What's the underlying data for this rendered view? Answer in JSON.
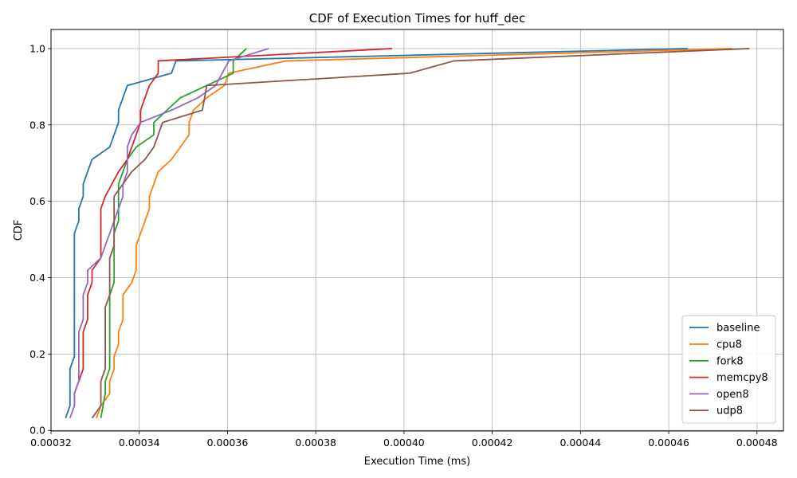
{
  "chart_data": {
    "type": "line",
    "title": "CDF of Execution Times for huff_dec",
    "xlabel": "Execution Time (ms)",
    "ylabel": "CDF",
    "xlim": [
      0.00032,
      0.000486
    ],
    "ylim": [
      -0.0016,
      1.05
    ],
    "xticks": [
      0.00032,
      0.00034,
      0.00036,
      0.00038,
      0.0004,
      0.00042,
      0.00044,
      0.00046,
      0.00048
    ],
    "xtick_labels": [
      "0.00032",
      "0.00034",
      "0.00036",
      "0.00038",
      "0.00040",
      "0.00042",
      "0.00044",
      "0.00046",
      "0.00048"
    ],
    "yticks": [
      0.0,
      0.2,
      0.4,
      0.6,
      0.8,
      1.0
    ],
    "ytick_labels": [
      "0.0",
      "0.2",
      "0.4",
      "0.6",
      "0.8",
      "1.0"
    ],
    "grid": true,
    "legend_position": "lower-right",
    "series": [
      {
        "name": "baseline",
        "color": "#1f77b4",
        "points": [
          [
            0.0003233,
            0.0323
          ],
          [
            0.0003243,
            0.0645
          ],
          [
            0.0003243,
            0.0968
          ],
          [
            0.0003243,
            0.129
          ],
          [
            0.0003243,
            0.1613
          ],
          [
            0.0003253,
            0.1935
          ],
          [
            0.0003253,
            0.2258
          ],
          [
            0.0003253,
            0.2581
          ],
          [
            0.0003253,
            0.2903
          ],
          [
            0.0003253,
            0.3226
          ],
          [
            0.0003253,
            0.3548
          ],
          [
            0.0003253,
            0.3871
          ],
          [
            0.0003253,
            0.4194
          ],
          [
            0.0003253,
            0.4516
          ],
          [
            0.0003253,
            0.4839
          ],
          [
            0.0003253,
            0.5161
          ],
          [
            0.0003263,
            0.5484
          ],
          [
            0.0003263,
            0.5806
          ],
          [
            0.0003273,
            0.6129
          ],
          [
            0.0003273,
            0.6452
          ],
          [
            0.0003293,
            0.7097
          ],
          [
            0.0003333,
            0.7419
          ],
          [
            0.0003353,
            0.8065
          ],
          [
            0.0003353,
            0.8387
          ],
          [
            0.0003373,
            0.9032
          ],
          [
            0.0003473,
            0.9355
          ],
          [
            0.0003483,
            0.9677
          ],
          [
            0.0004643,
            1.0
          ]
        ]
      },
      {
        "name": "cpu8",
        "color": "#ff7f0e",
        "points": [
          [
            0.0003303,
            0.0323
          ],
          [
            0.0003313,
            0.0645
          ],
          [
            0.0003333,
            0.0968
          ],
          [
            0.0003333,
            0.129
          ],
          [
            0.0003343,
            0.1613
          ],
          [
            0.0003343,
            0.1935
          ],
          [
            0.0003353,
            0.2258
          ],
          [
            0.0003353,
            0.2581
          ],
          [
            0.0003363,
            0.2903
          ],
          [
            0.0003363,
            0.3226
          ],
          [
            0.0003363,
            0.3548
          ],
          [
            0.0003383,
            0.3871
          ],
          [
            0.0003393,
            0.4194
          ],
          [
            0.0003393,
            0.4516
          ],
          [
            0.0003393,
            0.4839
          ],
          [
            0.0003403,
            0.5161
          ],
          [
            0.0003413,
            0.5484
          ],
          [
            0.0003423,
            0.5806
          ],
          [
            0.0003423,
            0.6129
          ],
          [
            0.0003433,
            0.6452
          ],
          [
            0.0003443,
            0.6774
          ],
          [
            0.0003473,
            0.7097
          ],
          [
            0.0003493,
            0.7419
          ],
          [
            0.0003513,
            0.7742
          ],
          [
            0.0003513,
            0.8065
          ],
          [
            0.0003523,
            0.8387
          ],
          [
            0.0003553,
            0.871
          ],
          [
            0.0003593,
            0.9032
          ],
          [
            0.0003603,
            0.9355
          ],
          [
            0.0003733,
            0.9677
          ],
          [
            0.0004743,
            1.0
          ]
        ]
      },
      {
        "name": "fork8",
        "color": "#2ca02c",
        "points": [
          [
            0.0003313,
            0.0323
          ],
          [
            0.0003323,
            0.0968
          ],
          [
            0.0003323,
            0.129
          ],
          [
            0.0003333,
            0.1613
          ],
          [
            0.0003333,
            0.1935
          ],
          [
            0.0003333,
            0.2258
          ],
          [
            0.0003333,
            0.2581
          ],
          [
            0.0003333,
            0.2903
          ],
          [
            0.0003333,
            0.3226
          ],
          [
            0.0003333,
            0.3548
          ],
          [
            0.0003343,
            0.3871
          ],
          [
            0.0003343,
            0.4194
          ],
          [
            0.0003343,
            0.4516
          ],
          [
            0.0003343,
            0.4839
          ],
          [
            0.0003343,
            0.5161
          ],
          [
            0.0003353,
            0.5484
          ],
          [
            0.0003353,
            0.5806
          ],
          [
            0.0003353,
            0.6129
          ],
          [
            0.0003353,
            0.6452
          ],
          [
            0.0003363,
            0.6774
          ],
          [
            0.0003373,
            0.7097
          ],
          [
            0.0003393,
            0.7419
          ],
          [
            0.0003433,
            0.7742
          ],
          [
            0.0003433,
            0.8065
          ],
          [
            0.0003463,
            0.8387
          ],
          [
            0.0003493,
            0.871
          ],
          [
            0.0003553,
            0.9032
          ],
          [
            0.0003613,
            0.9355
          ],
          [
            0.0003613,
            0.9677
          ],
          [
            0.0003643,
            1.0
          ]
        ]
      },
      {
        "name": "memcpy8",
        "color": "#d62728",
        "points": [
          [
            0.0003253,
            0.0645
          ],
          [
            0.0003253,
            0.0968
          ],
          [
            0.0003263,
            0.129
          ],
          [
            0.0003273,
            0.1613
          ],
          [
            0.0003273,
            0.1935
          ],
          [
            0.0003273,
            0.2258
          ],
          [
            0.0003273,
            0.2581
          ],
          [
            0.0003283,
            0.2903
          ],
          [
            0.0003283,
            0.3226
          ],
          [
            0.0003283,
            0.3548
          ],
          [
            0.0003293,
            0.3871
          ],
          [
            0.0003293,
            0.4194
          ],
          [
            0.0003313,
            0.4516
          ],
          [
            0.0003313,
            0.4839
          ],
          [
            0.0003313,
            0.5161
          ],
          [
            0.0003313,
            0.5484
          ],
          [
            0.0003313,
            0.5806
          ],
          [
            0.0003323,
            0.6129
          ],
          [
            0.0003353,
            0.6774
          ],
          [
            0.0003373,
            0.7097
          ],
          [
            0.0003383,
            0.7419
          ],
          [
            0.0003393,
            0.7742
          ],
          [
            0.0003403,
            0.8065
          ],
          [
            0.0003403,
            0.8387
          ],
          [
            0.0003423,
            0.9032
          ],
          [
            0.0003443,
            0.9355
          ],
          [
            0.0003443,
            0.9677
          ],
          [
            0.0003973,
            1.0
          ]
        ]
      },
      {
        "name": "open8",
        "color": "#9467bd",
        "points": [
          [
            0.0003243,
            0.0323
          ],
          [
            0.0003253,
            0.0645
          ],
          [
            0.0003253,
            0.0968
          ],
          [
            0.0003263,
            0.129
          ],
          [
            0.0003263,
            0.1613
          ],
          [
            0.0003263,
            0.1935
          ],
          [
            0.0003263,
            0.2258
          ],
          [
            0.0003263,
            0.2581
          ],
          [
            0.0003273,
            0.2903
          ],
          [
            0.0003273,
            0.3226
          ],
          [
            0.0003273,
            0.3548
          ],
          [
            0.0003283,
            0.3871
          ],
          [
            0.0003283,
            0.4194
          ],
          [
            0.0003313,
            0.4516
          ],
          [
            0.0003323,
            0.4839
          ],
          [
            0.0003333,
            0.5161
          ],
          [
            0.0003343,
            0.5484
          ],
          [
            0.0003353,
            0.5806
          ],
          [
            0.0003363,
            0.6129
          ],
          [
            0.0003363,
            0.6452
          ],
          [
            0.0003373,
            0.6774
          ],
          [
            0.0003373,
            0.7097
          ],
          [
            0.0003373,
            0.7419
          ],
          [
            0.0003383,
            0.7742
          ],
          [
            0.0003403,
            0.8065
          ],
          [
            0.0003473,
            0.8387
          ],
          [
            0.0003533,
            0.871
          ],
          [
            0.0003573,
            0.9032
          ],
          [
            0.0003603,
            0.9677
          ],
          [
            0.0003693,
            1.0
          ]
        ]
      },
      {
        "name": "udp8",
        "color": "#8c564b",
        "points": [
          [
            0.0003293,
            0.0323
          ],
          [
            0.0003313,
            0.0645
          ],
          [
            0.0003313,
            0.0968
          ],
          [
            0.0003313,
            0.129
          ],
          [
            0.0003323,
            0.1613
          ],
          [
            0.0003323,
            0.1935
          ],
          [
            0.0003323,
            0.2258
          ],
          [
            0.0003323,
            0.2581
          ],
          [
            0.0003323,
            0.2903
          ],
          [
            0.0003323,
            0.3226
          ],
          [
            0.0003333,
            0.3548
          ],
          [
            0.0003333,
            0.3871
          ],
          [
            0.0003333,
            0.4194
          ],
          [
            0.0003333,
            0.4516
          ],
          [
            0.0003343,
            0.4839
          ],
          [
            0.0003343,
            0.5161
          ],
          [
            0.0003343,
            0.5484
          ],
          [
            0.0003343,
            0.5806
          ],
          [
            0.0003343,
            0.6129
          ],
          [
            0.0003363,
            0.6452
          ],
          [
            0.0003383,
            0.6774
          ],
          [
            0.0003413,
            0.7097
          ],
          [
            0.0003433,
            0.7419
          ],
          [
            0.0003453,
            0.8065
          ],
          [
            0.0003543,
            0.8387
          ],
          [
            0.0003553,
            0.9032
          ],
          [
            0.0004013,
            0.9355
          ],
          [
            0.0004113,
            0.9677
          ],
          [
            0.0004783,
            1.0
          ]
        ]
      }
    ]
  }
}
